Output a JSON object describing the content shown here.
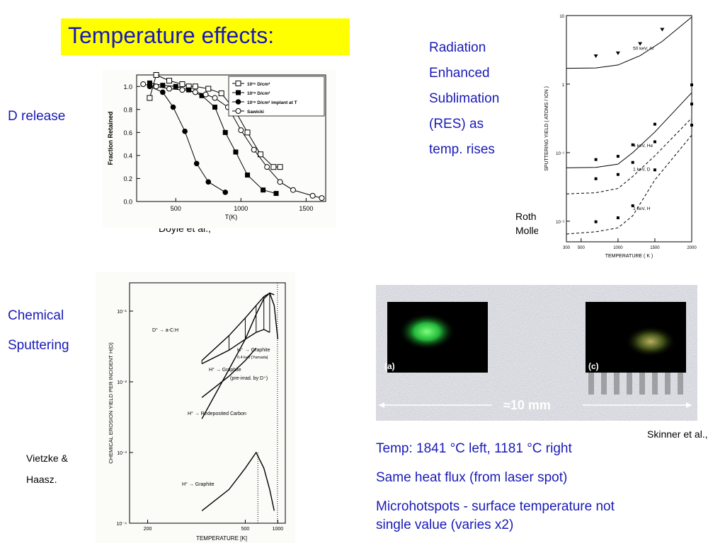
{
  "slide": {
    "title": "Temperature effects:",
    "d_release_label": "D release",
    "doyle_credit": "Doyle et al.,",
    "res_lines": [
      "Radiation",
      "Enhanced",
      "Sublimation",
      "(RES) as",
      "temp. rises"
    ],
    "roth_credit_1": "Roth &",
    "roth_credit_2": "Moller",
    "chem_label_1": "Chemical",
    "chem_label_2": "Sputtering",
    "vietzke_credit_1": "Vietzke &",
    "vietzke_credit_2": "Haasz.",
    "photo_label_a": "(a)",
    "photo_label_c": "(c)",
    "photo_scale": "≈10 mm",
    "skinner_credit": "Skinner et al.,",
    "bottom_lines": [
      "Temp: 1841 °C left, 1181 °C right",
      "Same heat flux (from laser spot)",
      "Microhotspots - surface temperature not",
      "single value (varies x2)"
    ]
  },
  "chart_data": [
    {
      "type": "line",
      "xlabel": "T(K)",
      "ylabel": "Fraction Retained",
      "xlim": [
        200,
        1650
      ],
      "ylim": [
        0,
        1.1
      ],
      "xticks": [
        "500",
        "1000",
        "1500"
      ],
      "yticks": [
        "0.0",
        "0.2",
        "0.4",
        "0.6",
        "0.8",
        "1.0"
      ],
      "legend_position": "top-right",
      "series": [
        {
          "name": "10¹⁶ D/cm²",
          "marker": "open-square",
          "x": [
            300,
            350,
            450,
            550,
            600,
            650,
            750,
            850,
            950,
            1050,
            1150,
            1250,
            1300
          ],
          "y": [
            0.9,
            1.1,
            1.05,
            1.02,
            1.0,
            1.0,
            0.98,
            0.94,
            0.8,
            0.6,
            0.41,
            0.3,
            0.3
          ]
        },
        {
          "name": "10¹⁸ D/cm²",
          "marker": "filled-square",
          "x": [
            300,
            400,
            500,
            600,
            700,
            800,
            880,
            960,
            1050,
            1170,
            1270
          ],
          "y": [
            1.03,
            1.01,
            1.0,
            0.97,
            0.92,
            0.82,
            0.6,
            0.43,
            0.23,
            0.1,
            0.07
          ]
        },
        {
          "name": "10¹⁸ D/cm² implant at T",
          "marker": "filled-circle",
          "x": [
            300,
            400,
            480,
            570,
            660,
            750,
            880
          ],
          "y": [
            1.0,
            0.95,
            0.82,
            0.61,
            0.33,
            0.17,
            0.08
          ]
        },
        {
          "name": "Sawicki",
          "marker": "open-circle",
          "x": [
            250,
            350,
            450,
            550,
            650,
            730,
            800,
            900,
            1000,
            1100,
            1200,
            1300,
            1400,
            1550,
            1620
          ],
          "y": [
            1.02,
            1.0,
            0.98,
            0.97,
            0.95,
            0.93,
            0.9,
            0.82,
            0.62,
            0.45,
            0.3,
            0.17,
            0.1,
            0.05,
            0.03
          ]
        }
      ]
    },
    {
      "type": "line",
      "xlabel": "TEMPERATURE ( K )",
      "ylabel": "SPUTTERING YIELD ( ATOMS / ION )",
      "yscale": "log",
      "xlim": [
        300,
        2000
      ],
      "ylim": [
        0.005,
        10
      ],
      "xticks": [
        "300",
        "500",
        "1000",
        "1500",
        "2000"
      ],
      "yticks": [
        "10",
        "1",
        "10⁻¹",
        "10⁻²"
      ],
      "annotations": [
        "50 keV, Ar",
        "4 keV, He",
        "1 keV, D",
        "1 keV, H"
      ],
      "series": [
        {
          "name": "50 keV, Ar",
          "x": [
            300,
            700,
            1000,
            1300,
            1600,
            2000
          ],
          "y": [
            1.7,
            1.72,
            1.9,
            2.6,
            4.2,
            9.5
          ]
        },
        {
          "name": "4 keV, He",
          "x": [
            300,
            700,
            1000,
            1200,
            1500,
            2000
          ],
          "y": [
            0.06,
            0.061,
            0.068,
            0.1,
            0.2,
            0.75
          ]
        },
        {
          "name": "1 keV, D",
          "x": [
            300,
            700,
            1000,
            1200,
            1500,
            2000
          ],
          "y": [
            0.025,
            0.026,
            0.03,
            0.045,
            0.09,
            0.32
          ]
        },
        {
          "name": "1 keV, H",
          "x": [
            300,
            700,
            1000,
            1200,
            1500,
            2000
          ],
          "y": [
            0.0065,
            0.007,
            0.008,
            0.012,
            0.04,
            0.18
          ]
        }
      ]
    },
    {
      "type": "line",
      "xlabel": "TEMPERATURE [K]",
      "ylabel": "CHEMICAL EROSION YIELD PER INCIDENT H(D)",
      "yscale": "log",
      "xscale": "reciprocal",
      "xticks": [
        "200",
        "500",
        "1000"
      ],
      "yticks": [
        "10⁻¹",
        "10⁻²",
        "10⁻³",
        "10⁻⁴"
      ],
      "annotations": [
        "D° → a-C:H",
        "H⁺ → Graphite",
        "0.4 keV   [Yamada]",
        "H° → Graphite",
        "(pre-irrad. by D⁺)",
        "H° → Redeposited Carbon",
        "H° → Graphite"
      ],
      "series": [
        {
          "name": "D° → a-C:H",
          "x": [
            300,
            400,
            500,
            600,
            700,
            800,
            900
          ],
          "y": [
            0.02,
            0.045,
            0.08,
            0.12,
            0.16,
            0.18,
            0.17
          ]
        },
        {
          "name": "H⁺ → Graphite",
          "x": [
            300,
            400,
            500,
            600,
            700,
            800,
            900,
            1000
          ],
          "y": [
            0.003,
            0.015,
            0.04,
            0.09,
            0.15,
            0.18,
            0.12,
            0.04
          ]
        },
        {
          "name": "H° → Graphite (pre-irrad. by D⁺)",
          "x": [
            300,
            400,
            500,
            600,
            700,
            800
          ],
          "y": [
            0.018,
            0.028,
            0.04,
            0.05,
            0.055,
            0.05
          ]
        },
        {
          "name": "H° → Redeposited Carbon",
          "x": [
            300,
            400,
            500,
            600
          ],
          "y": [
            0.006,
            0.012,
            0.02,
            0.03
          ]
        },
        {
          "name": "H° → Graphite",
          "x": [
            300,
            400,
            500,
            600,
            700,
            800,
            900
          ],
          "y": [
            0.00015,
            0.0003,
            0.0006,
            0.001,
            0.0006,
            0.0003,
            0.00015
          ]
        }
      ]
    }
  ]
}
